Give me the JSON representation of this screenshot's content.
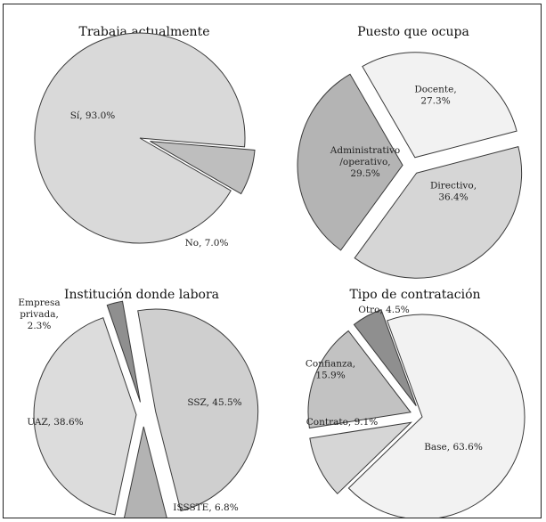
{
  "chart_data": [
    {
      "type": "pie",
      "title": "Trabaja actualmente",
      "slices": [
        {
          "label": "Sí, 93.0%",
          "category": "Sí",
          "value": 93.0,
          "color": "#d9d9d9"
        },
        {
          "label": "No, 7.0%",
          "category": "No",
          "value": 7.0,
          "color": "#bebebe"
        }
      ]
    },
    {
      "type": "pie",
      "title": "Puesto que ocupa",
      "slices": [
        {
          "label": "Docente,\n27.3%",
          "category": "Docente",
          "value": 27.3,
          "color": "#f2f2f2"
        },
        {
          "label": "Directivo,\n36.4%",
          "category": "Directivo",
          "value": 36.4,
          "color": "#d6d6d6"
        },
        {
          "label": "Administrativo\n/operativo,\n29.5%",
          "category": "Administrativo/operativo",
          "value": 29.5,
          "color": "#b4b4b4"
        }
      ]
    },
    {
      "type": "pie",
      "title": "Institución donde labora",
      "slices": [
        {
          "label": "SSZ, 45.5%",
          "category": "SSZ",
          "value": 45.5,
          "color": "#cfcfcf"
        },
        {
          "label": "ISSSTE, 6.8%",
          "category": "ISSSTE",
          "value": 6.8,
          "color": "#b3b3b3"
        },
        {
          "label": "UAZ, 38.6%",
          "category": "UAZ",
          "value": 38.6,
          "color": "#dcdcdc"
        },
        {
          "label": "Empresa\nprivada,\n2.3%",
          "category": "Empresa privada",
          "value": 2.3,
          "color": "#8f8f8f"
        }
      ]
    },
    {
      "type": "pie",
      "title": "Tipo de contratación",
      "slices": [
        {
          "label": "Base, 63.6%",
          "category": "Base",
          "value": 63.6,
          "color": "#f2f2f2"
        },
        {
          "label": "Contrato, 9.1%",
          "category": "Contrato",
          "value": 9.1,
          "color": "#d6d6d6"
        },
        {
          "label": "Confianza,\n15.9%",
          "category": "Confianza",
          "value": 15.9,
          "color": "#c2c2c2"
        },
        {
          "label": "Otro, 4.5%",
          "category": "Otro",
          "value": 4.5,
          "color": "#8f8f8f"
        }
      ]
    }
  ]
}
